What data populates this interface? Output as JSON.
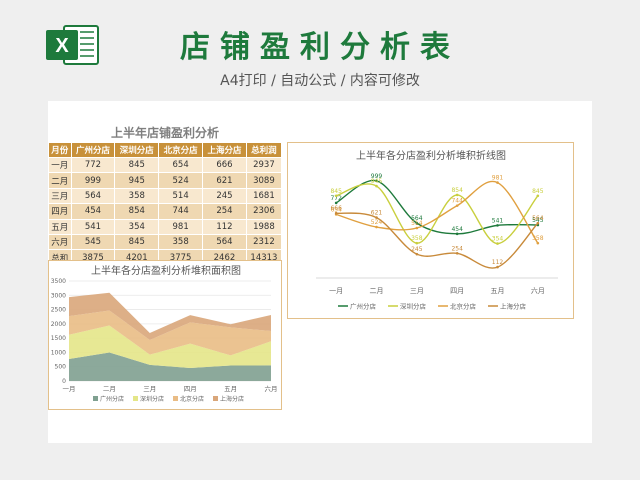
{
  "header": {
    "title": "店铺盈利分析表",
    "subtitle": "A4打印 / 自动公式 / 内容可修改"
  },
  "table": {
    "title": "上半年店铺盈利分析",
    "columns": [
      "月份",
      "广州分店",
      "深圳分店",
      "北京分店",
      "上海分店",
      "总利润"
    ],
    "rows": [
      [
        "一月",
        "772",
        "845",
        "654",
        "666",
        "2937"
      ],
      [
        "二月",
        "999",
        "945",
        "524",
        "621",
        "3089"
      ],
      [
        "三月",
        "564",
        "358",
        "514",
        "245",
        "1681"
      ],
      [
        "四月",
        "454",
        "854",
        "744",
        "254",
        "2306"
      ],
      [
        "五月",
        "541",
        "354",
        "981",
        "112",
        "1988"
      ],
      [
        "六月",
        "545",
        "845",
        "358",
        "564",
        "2312"
      ],
      [
        "总和",
        "3875",
        "4201",
        "3775",
        "2462",
        "14313"
      ]
    ]
  },
  "chart_data": [
    {
      "type": "line",
      "title": "上半年各分店盈利分析堆积折线图",
      "categories": [
        "一月",
        "二月",
        "三月",
        "四月",
        "五月",
        "六月"
      ],
      "series": [
        {
          "name": "广州分店",
          "values": [
            772,
            999,
            564,
            454,
            541,
            545
          ],
          "color": "#1e7a3c"
        },
        {
          "name": "深圳分店",
          "values": [
            845,
            945,
            358,
            854,
            354,
            845
          ],
          "color": "#c9cf3e"
        },
        {
          "name": "北京分店",
          "values": [
            654,
            524,
            514,
            744,
            981,
            358
          ],
          "color": "#e0a040"
        },
        {
          "name": "上海分店",
          "values": [
            666,
            621,
            245,
            254,
            112,
            564
          ],
          "color": "#c88a3a"
        }
      ],
      "ylim": [
        0,
        1100
      ],
      "legend": "bottom"
    },
    {
      "type": "area",
      "title": "上半年各分店盈利分析堆积面积图",
      "categories": [
        "一月",
        "二月",
        "三月",
        "四月",
        "五月",
        "六月"
      ],
      "yticks": [
        0,
        500,
        1000,
        1500,
        2000,
        2500,
        3000,
        3500
      ],
      "ylim": [
        0,
        3500
      ],
      "series": [
        {
          "name": "广州分店",
          "values": [
            772,
            999,
            564,
            454,
            541,
            545
          ],
          "color": "#7fa090"
        },
        {
          "name": "深圳分店",
          "values": [
            845,
            945,
            358,
            854,
            354,
            845
          ],
          "color": "#e4e688"
        },
        {
          "name": "北京分店",
          "values": [
            654,
            524,
            514,
            744,
            981,
            358
          ],
          "color": "#e9bc85"
        },
        {
          "name": "上海分店",
          "values": [
            666,
            621,
            245,
            254,
            112,
            564
          ],
          "color": "#d9a67a"
        }
      ],
      "legend": "bottom"
    }
  ],
  "colors": {
    "brand": "#1e7a3c",
    "table_header": "#c8913a",
    "accent": "#e3c08a"
  },
  "icons": {
    "logo": "excel-icon"
  }
}
